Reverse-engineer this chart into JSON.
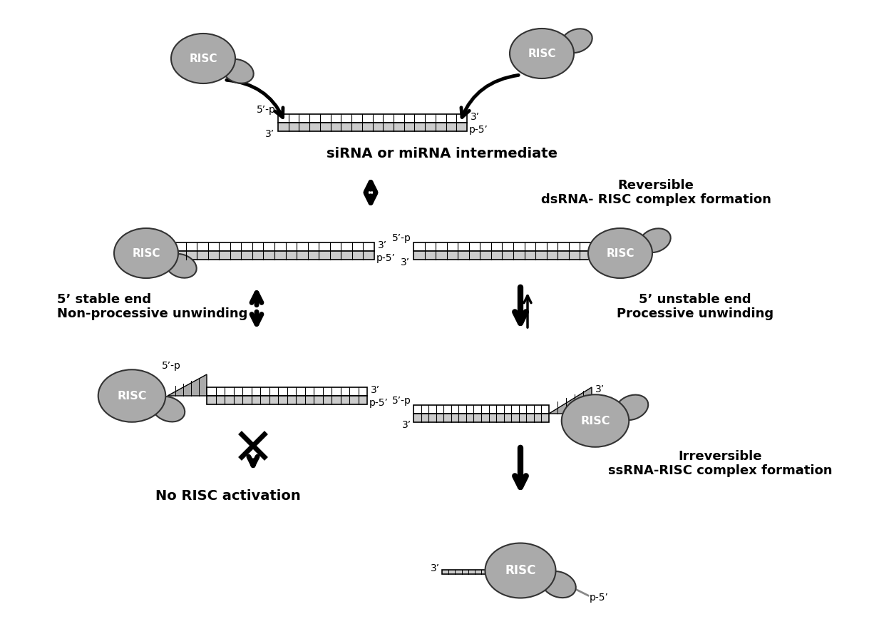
{
  "background_color": "#ffffff",
  "risc_color": "#aaaaaa",
  "risc_text_color": "#ffffff",
  "dsrna_top_color": "#ffffff",
  "dsrna_hatch": "|||",
  "dsrna_edge_color": "#000000",
  "arrow_color": "#000000",
  "text_color": "#000000",
  "labels": {
    "sirna_label": "siRNA or miRNA intermediate",
    "reversible_label": "Reversible\ndsRNA- RISC complex formation",
    "stable_end_label": "5’ stable end\nNon-processive unwinding",
    "unstable_end_label": "5’ unstable end\nProcessive unwinding",
    "no_risc_label": "No RISC activation",
    "irreversible_label": "Irreversible\nssRNA-RISC complex formation"
  }
}
